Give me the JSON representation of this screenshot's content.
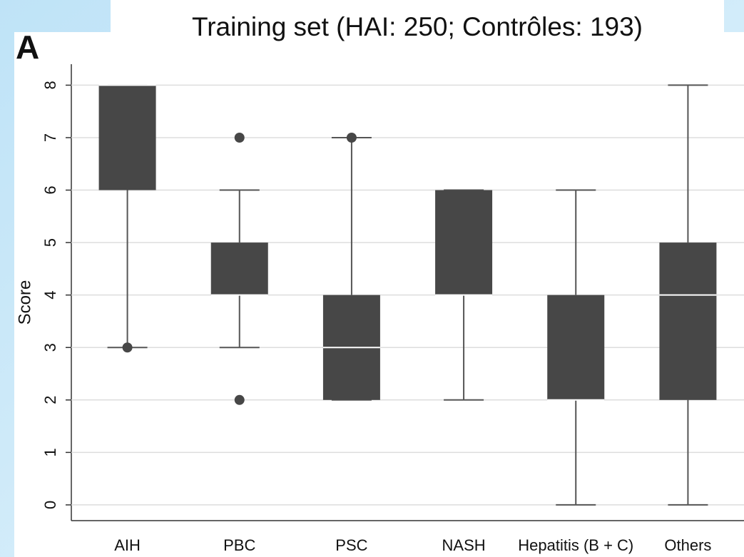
{
  "chart_data": {
    "type": "box",
    "title": "Training set (HAI: 250; Contrôles: 193)",
    "panel_label": "A",
    "ylabel": "Score",
    "categories": [
      "AIH",
      "PBC",
      "PSC",
      "NASH",
      "Hepatitis (B + C)",
      "Others"
    ],
    "whisker_low": [
      3,
      3,
      2,
      2,
      0,
      0
    ],
    "q1": [
      6,
      4,
      2,
      4,
      2,
      2
    ],
    "median": [
      8,
      4,
      3,
      4,
      2,
      4
    ],
    "q3": [
      8,
      5,
      4,
      6,
      4,
      5
    ],
    "whisker_high": [
      8,
      6,
      7,
      6,
      6,
      8
    ],
    "outliers": [
      [
        3
      ],
      [
        7,
        2
      ],
      [
        7
      ],
      [],
      [],
      []
    ],
    "color": "#474747",
    "ylim": [
      -0.3,
      8.4
    ],
    "yticks": [
      0,
      1,
      2,
      3,
      4,
      5,
      6,
      7,
      8
    ],
    "grid": true
  }
}
